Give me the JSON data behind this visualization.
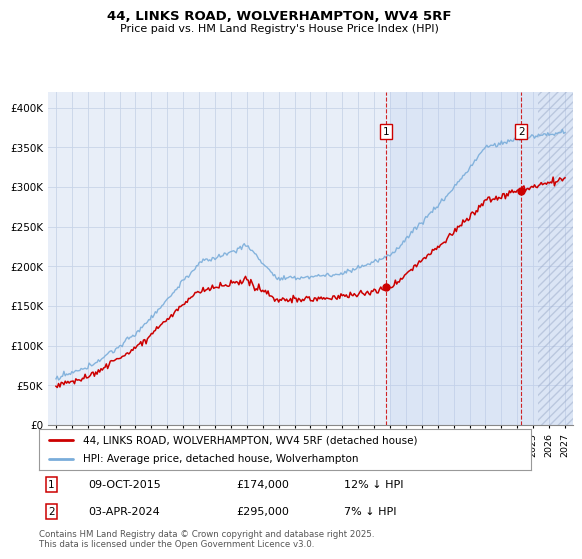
{
  "title": "44, LINKS ROAD, WOLVERHAMPTON, WV4 5RF",
  "subtitle": "Price paid vs. HM Land Registry's House Price Index (HPI)",
  "hpi_label": "HPI: Average price, detached house, Wolverhampton",
  "price_label": "44, LINKS ROAD, WOLVERHAMPTON, WV4 5RF (detached house)",
  "price_color": "#cc0000",
  "hpi_color": "#7aadda",
  "bg_color": "#e8eef8",
  "grid_color": "#c8d4e8",
  "ylim": [
    0,
    420000
  ],
  "yticks": [
    0,
    50000,
    100000,
    150000,
    200000,
    250000,
    300000,
    350000,
    400000
  ],
  "xlim_start": 1994.5,
  "xlim_end": 2027.5,
  "marker1_x": 2015.77,
  "marker1_y": 174000,
  "marker1_label": "1",
  "marker1_date": "09-OCT-2015",
  "marker1_price": "£174,000",
  "marker1_hpi": "12% ↓ HPI",
  "marker2_x": 2024.25,
  "marker2_y": 295000,
  "marker2_label": "2",
  "marker2_date": "03-APR-2024",
  "marker2_price": "£295,000",
  "marker2_hpi": "7% ↓ HPI",
  "footer": "Contains HM Land Registry data © Crown copyright and database right 2025.\nThis data is licensed under the Open Government Licence v3.0.",
  "shade_start": 2016.0,
  "hatch_start": 2025.3
}
